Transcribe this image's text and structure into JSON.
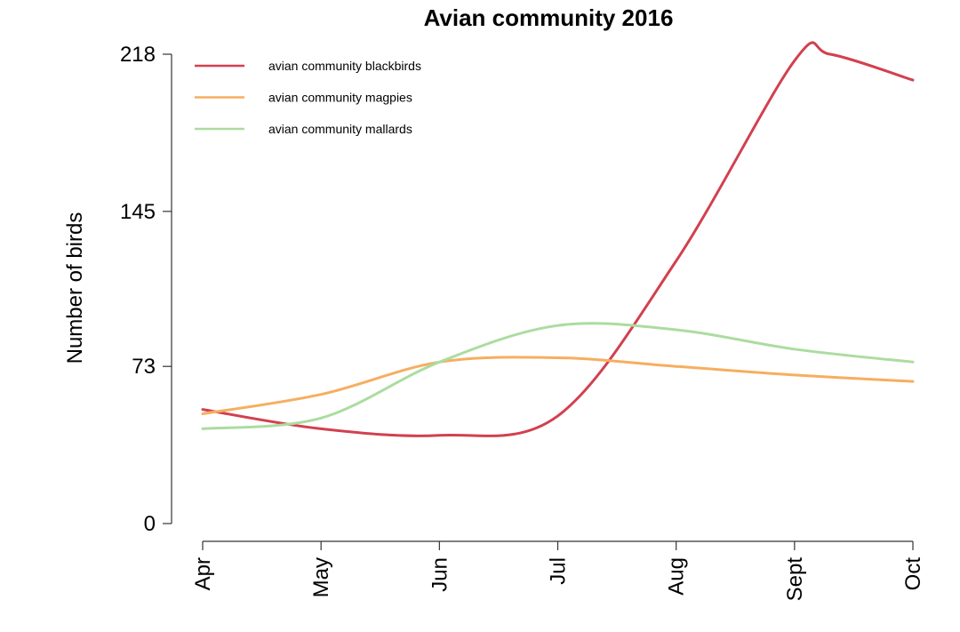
{
  "chart_data": {
    "type": "line",
    "title": "Avian community 2016",
    "xlabel": "",
    "ylabel": "Number of birds",
    "categories": [
      "Apr",
      "May",
      "Jun",
      "Jul",
      "Aug",
      "Sept",
      "Oct"
    ],
    "yticks": [
      0,
      73,
      145,
      218
    ],
    "ylim": [
      0,
      218
    ],
    "grid": false,
    "legend_position": "top-left",
    "series": [
      {
        "name": "avian community blackbirds",
        "color": "#d2404f",
        "values": [
          53,
          44,
          41,
          50,
          122,
          215,
          206
        ],
        "peak": {
          "x": 5.3,
          "y": 218
        }
      },
      {
        "name": "avian community magpies",
        "color": "#f6ae60",
        "values": [
          51,
          60,
          75,
          77,
          73,
          69,
          66
        ]
      },
      {
        "name": "avian community mallards",
        "color": "#acdca0",
        "values": [
          44,
          49,
          75,
          92,
          90,
          81,
          75
        ]
      }
    ]
  }
}
